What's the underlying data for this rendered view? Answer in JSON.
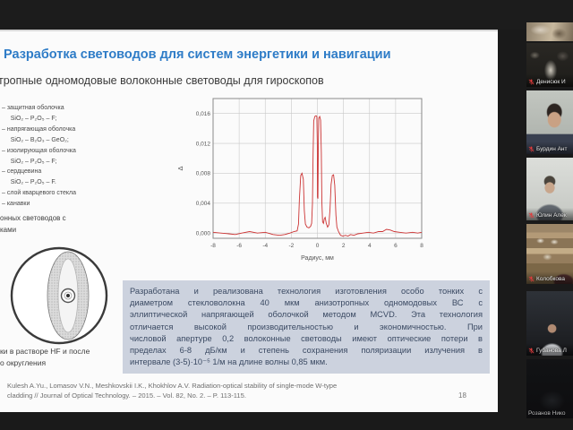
{
  "colors": {
    "title_blue": "#2e7cc7",
    "summary_bg": "#ccd2de",
    "chart_line_red": "#cc3333",
    "muted_mic_red": "#e03c3c"
  },
  "slide": {
    "title": "Разработка световодов для систем энергетики и навигации",
    "subtitle": "тропные одномодовые волоконные световоды для гироскопов",
    "fiber_labels": [
      "– защитная оболочка",
      "     SiO₂ – P₂O₅ – F;",
      "– напрягающая оболочка",
      "     SiO₂ – B₂O₃ – GeO₂;",
      "– изолирующая оболочка",
      "     SiO₂ – P₂O₅ – F;",
      "– сердцевина",
      "     SiO₂ – P₂O₅ – F.",
      "– слой кварцевого стекла",
      "– канавки"
    ],
    "cross_section_caption": {
      "line1": "онных световодов с",
      "line2": "ками"
    },
    "etch_caption": {
      "line1": "ки в растворе HF и после",
      "line2": "о округления"
    },
    "summary_lines": [
      "Разработана и реализована технология изготовления особо тонких с",
      "диаметром стекловолокна 40 мкм анизотропных одномодовых ВС с",
      "эллиптической напрягающей оболочкой методом MCVD. Эта технология",
      "отличается высокой производительностью и экономичностью. При",
      "числовой апертуре 0,2 волоконные световоды имеют оптические потери в",
      "пределах 6-8 дБ/км и степень сохранения поляризации излучения в",
      "интервале (3-5)·10⁻⁵ 1/м на длине волны 0,85 мкм."
    ],
    "reference_lines": {
      "line1": "Kulesh A.Yu., Lomasov V.N., Meshkovskii I.K., Khokhlov A.V. Radiation-optical stability of single-mode W-type",
      "line2": "cladding // Journal of Optical Technology. – 2015. – Vol. 82, No. 2. – P. 113-115."
    },
    "page_number": "18"
  },
  "meeting": {
    "participants": [
      {
        "name": ""
      },
      {
        "name": "Денисюк И"
      },
      {
        "name": "Бурдин Ант"
      },
      {
        "name": "Юлин Алек"
      },
      {
        "name": "Колобкова"
      },
      {
        "name": "Губанова Л"
      },
      {
        "name": "Розанов Нико"
      }
    ]
  },
  "chart_data": {
    "type": "line",
    "title": "",
    "xlabel": "Радиус, мм",
    "ylabel": "Δ",
    "xlim": [
      -8,
      8
    ],
    "ylim": [
      -0.0007,
      0.018
    ],
    "xticks": [
      -8,
      -6,
      -4,
      -2,
      0,
      2,
      4,
      6,
      8
    ],
    "yticks": [
      0,
      0.004,
      0.008,
      0.012,
      0.016
    ],
    "ytick_labels": [
      "0,000",
      "0,004",
      "0,008",
      "0,012",
      "0,016"
    ],
    "grid": true,
    "legend": false,
    "line_color": "#cc3333",
    "series": [
      {
        "name": "refractive-index-profile",
        "points": [
          [
            -8,
            0.0001
          ],
          [
            -7.4,
            0
          ],
          [
            -6.8,
            -0.0001
          ],
          [
            -6.3,
            -0.0002
          ],
          [
            -5.8,
            0
          ],
          [
            -5.2,
            0.0002
          ],
          [
            -4.6,
            0
          ],
          [
            -4,
            0.0001
          ],
          [
            -3.4,
            -0.0002
          ],
          [
            -2.9,
            -0.0003
          ],
          [
            -2.5,
            -0.0002
          ],
          [
            -2.1,
            0
          ],
          [
            -1.8,
            0.0002
          ],
          [
            -1.55,
            0.0003
          ],
          [
            -1.45,
            0.0012
          ],
          [
            -1.38,
            0.0045
          ],
          [
            -1.28,
            0.0077
          ],
          [
            -1.18,
            0.008
          ],
          [
            -1.08,
            0.0072
          ],
          [
            -1.0,
            0.003
          ],
          [
            -0.92,
            0.0012
          ],
          [
            -0.8,
            0.0008
          ],
          [
            -0.65,
            0.0007
          ],
          [
            -0.52,
            0.0009
          ],
          [
            -0.44,
            0.0013
          ],
          [
            -0.38,
            0.004
          ],
          [
            -0.33,
            0.0105
          ],
          [
            -0.28,
            0.015
          ],
          [
            -0.2,
            0.0156
          ],
          [
            -0.1,
            0.0157
          ],
          [
            -0.04,
            0.0156
          ],
          [
            -0.01,
            0.012
          ],
          [
            0.01,
            0.0048
          ],
          [
            0.04,
            0.0046
          ],
          [
            0.07,
            0.011
          ],
          [
            0.1,
            0.0154
          ],
          [
            0.18,
            0.0156
          ],
          [
            0.25,
            0.0151
          ],
          [
            0.3,
            0.0108
          ],
          [
            0.34,
            0.0042
          ],
          [
            0.4,
            0.0015
          ],
          [
            0.47,
            0.0013
          ],
          [
            0.53,
            0.0019
          ],
          [
            0.6,
            0.0021
          ],
          [
            0.68,
            0.0013
          ],
          [
            0.78,
            0.0008
          ],
          [
            0.88,
            0.0011
          ],
          [
            0.97,
            0.0032
          ],
          [
            1.05,
            0.0065
          ],
          [
            1.15,
            0.0077
          ],
          [
            1.24,
            0.0078
          ],
          [
            1.33,
            0.0064
          ],
          [
            1.42,
            0.0024
          ],
          [
            1.5,
            0.0008
          ],
          [
            1.62,
            0.0002
          ],
          [
            1.78,
            -0.0003
          ],
          [
            1.95,
            -0.0004
          ],
          [
            2.15,
            -0.0003
          ],
          [
            2.35,
            -0.0004
          ],
          [
            2.55,
            -0.0002
          ],
          [
            2.8,
            -0.0003
          ],
          [
            3.1,
            -0.0001
          ],
          [
            3.5,
            0
          ],
          [
            3.9,
            0.0001
          ],
          [
            4.3,
            0
          ],
          [
            4.7,
            0.0002
          ],
          [
            5,
            0.0002
          ],
          [
            5.3,
            0.0005
          ],
          [
            5.6,
            0.0004
          ],
          [
            5.9,
            0.0002
          ],
          [
            6.3,
            0.0001
          ],
          [
            6.8,
            0
          ],
          [
            7.3,
            0.0001
          ],
          [
            7.7,
            0
          ],
          [
            8,
            0.0001
          ]
        ]
      }
    ]
  }
}
